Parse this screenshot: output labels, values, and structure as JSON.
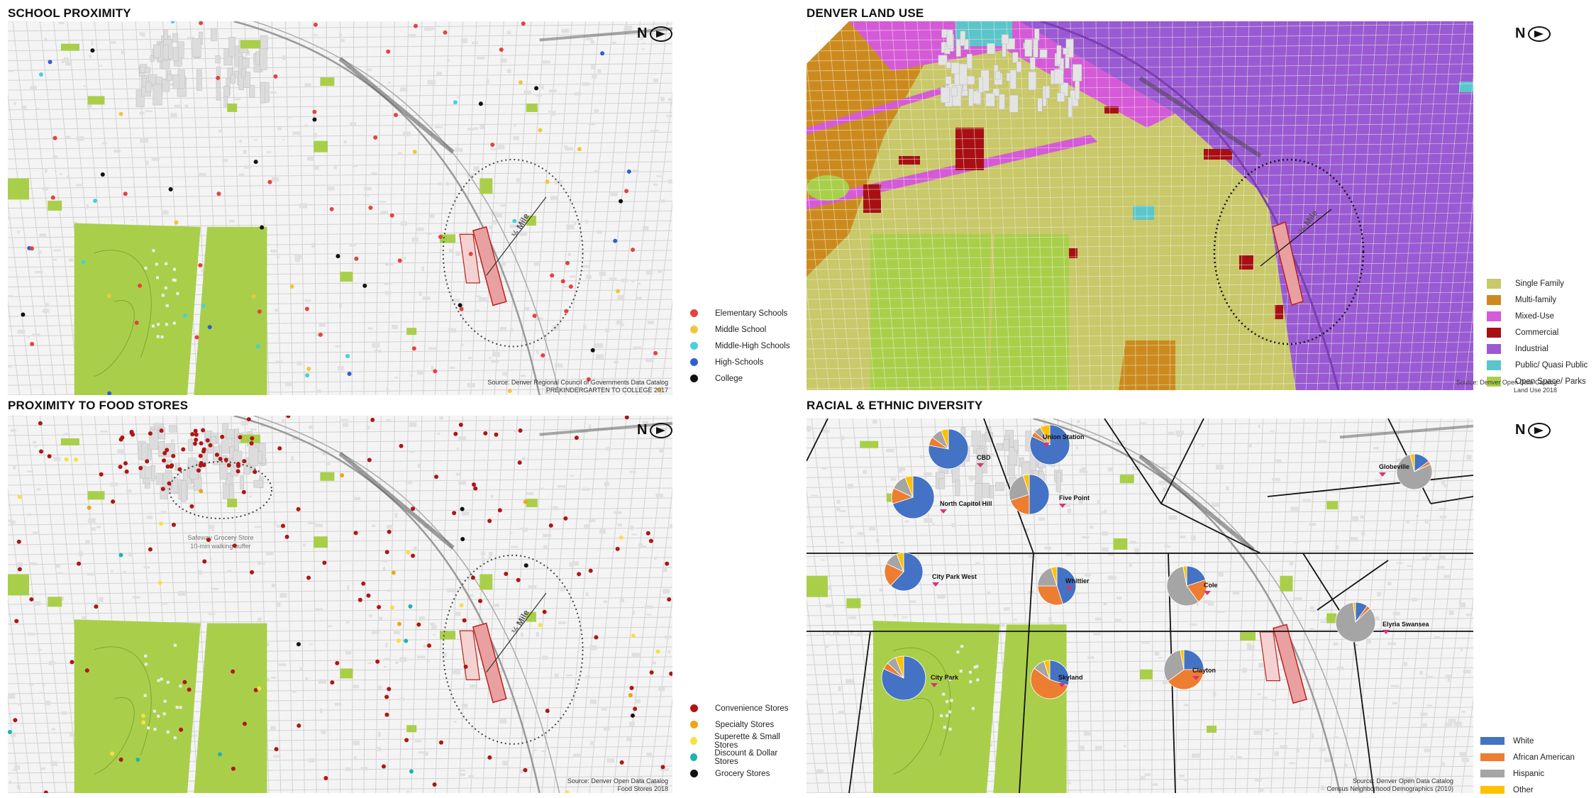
{
  "panels": {
    "school": {
      "title": "SCHOOL PROXIMITY",
      "north_label": "N",
      "half_mile": "½ Mile",
      "legend": [
        {
          "label": "Elementary Schools",
          "color": "#e84040"
        },
        {
          "label": "Middle School",
          "color": "#f2c53a"
        },
        {
          "label": "Middle-High Schools",
          "color": "#48cfe0"
        },
        {
          "label": "High-Schools",
          "color": "#2f5fcf"
        },
        {
          "label": "College",
          "color": "#111111"
        }
      ],
      "source_line1": "Source: Denver Regional Council of Governments Data Catalog",
      "source_line2": "PREKINDERGARTEN TO COLLEGE 2017"
    },
    "landuse": {
      "title": "DENVER LAND USE",
      "north_label": "N",
      "half_mile": "½ Mile",
      "legend": [
        {
          "label": "Single Family",
          "color": "#c9c86a"
        },
        {
          "label": "Multi-family",
          "color": "#cc8a1e"
        },
        {
          "label": "Mixed-Use",
          "color": "#d55ad8"
        },
        {
          "label": "Commercial",
          "color": "#a80f15"
        },
        {
          "label": "Industrial",
          "color": "#9a5ad3"
        },
        {
          "label": "Public/ Quasi Public",
          "color": "#5cc5cc"
        },
        {
          "label": "Open Space/ Parks",
          "color": "#a9cf4a"
        }
      ],
      "source_line1": "Source: Denver Open Data Catalog",
      "source_line2": "Land Use 2018"
    },
    "food": {
      "title": "PROXIMITY TO FOOD STORES",
      "north_label": "N",
      "half_mile": "½ Mile",
      "buffer_line1": "Safeway Grocery Store",
      "buffer_line2": "10-min walking buffer",
      "legend": [
        {
          "label": "Convenience Stores",
          "color": "#b01515"
        },
        {
          "label": "Specialty Stores",
          "color": "#f0a418"
        },
        {
          "label": "Superette & Small Stores",
          "color": "#f7e043"
        },
        {
          "label": "Discount & Dollar Stores",
          "color": "#1fb3b0"
        },
        {
          "label": "Grocery Stores",
          "color": "#111111"
        }
      ],
      "source_line1": "Source: Denver Open Data Catalog",
      "source_line2": "Food Stores 2018"
    },
    "diversity": {
      "title": "RACIAL & ETHNIC DIVERSITY",
      "north_label": "N",
      "legend": [
        {
          "label": "White",
          "color": "#4472c4"
        },
        {
          "label": "African American",
          "color": "#ed7d31"
        },
        {
          "label": "Hispanic",
          "color": "#a5a5a5"
        },
        {
          "label": "Other",
          "color": "#ffc000"
        }
      ],
      "neighborhoods": [
        {
          "name": "CBD",
          "values": [
            0.78,
            0.07,
            0.09,
            0.06
          ]
        },
        {
          "name": "Union Station",
          "values": [
            0.82,
            0.04,
            0.06,
            0.08
          ]
        },
        {
          "name": "Globeville",
          "values": [
            0.15,
            0.03,
            0.78,
            0.04
          ]
        },
        {
          "name": "North Capitol Hill",
          "values": [
            0.7,
            0.12,
            0.12,
            0.06
          ]
        },
        {
          "name": "Five Point",
          "values": [
            0.5,
            0.2,
            0.25,
            0.05
          ]
        },
        {
          "name": "City Park West",
          "values": [
            0.62,
            0.2,
            0.12,
            0.06
          ]
        },
        {
          "name": "Whittier",
          "values": [
            0.45,
            0.3,
            0.2,
            0.05
          ]
        },
        {
          "name": "Cole",
          "values": [
            0.2,
            0.2,
            0.57,
            0.03
          ]
        },
        {
          "name": "Elyria Swansea",
          "values": [
            0.1,
            0.03,
            0.85,
            0.02
          ]
        },
        {
          "name": "City Park",
          "values": [
            0.82,
            0.05,
            0.07,
            0.06
          ]
        },
        {
          "name": "Skyland",
          "values": [
            0.3,
            0.55,
            0.1,
            0.05
          ]
        },
        {
          "name": "Clayton",
          "values": [
            0.25,
            0.4,
            0.32,
            0.03
          ]
        }
      ],
      "source_line1": "Source: Denver Open Data Catalog",
      "source_line2": "Census Neighborhood Demographics (2010)"
    }
  }
}
